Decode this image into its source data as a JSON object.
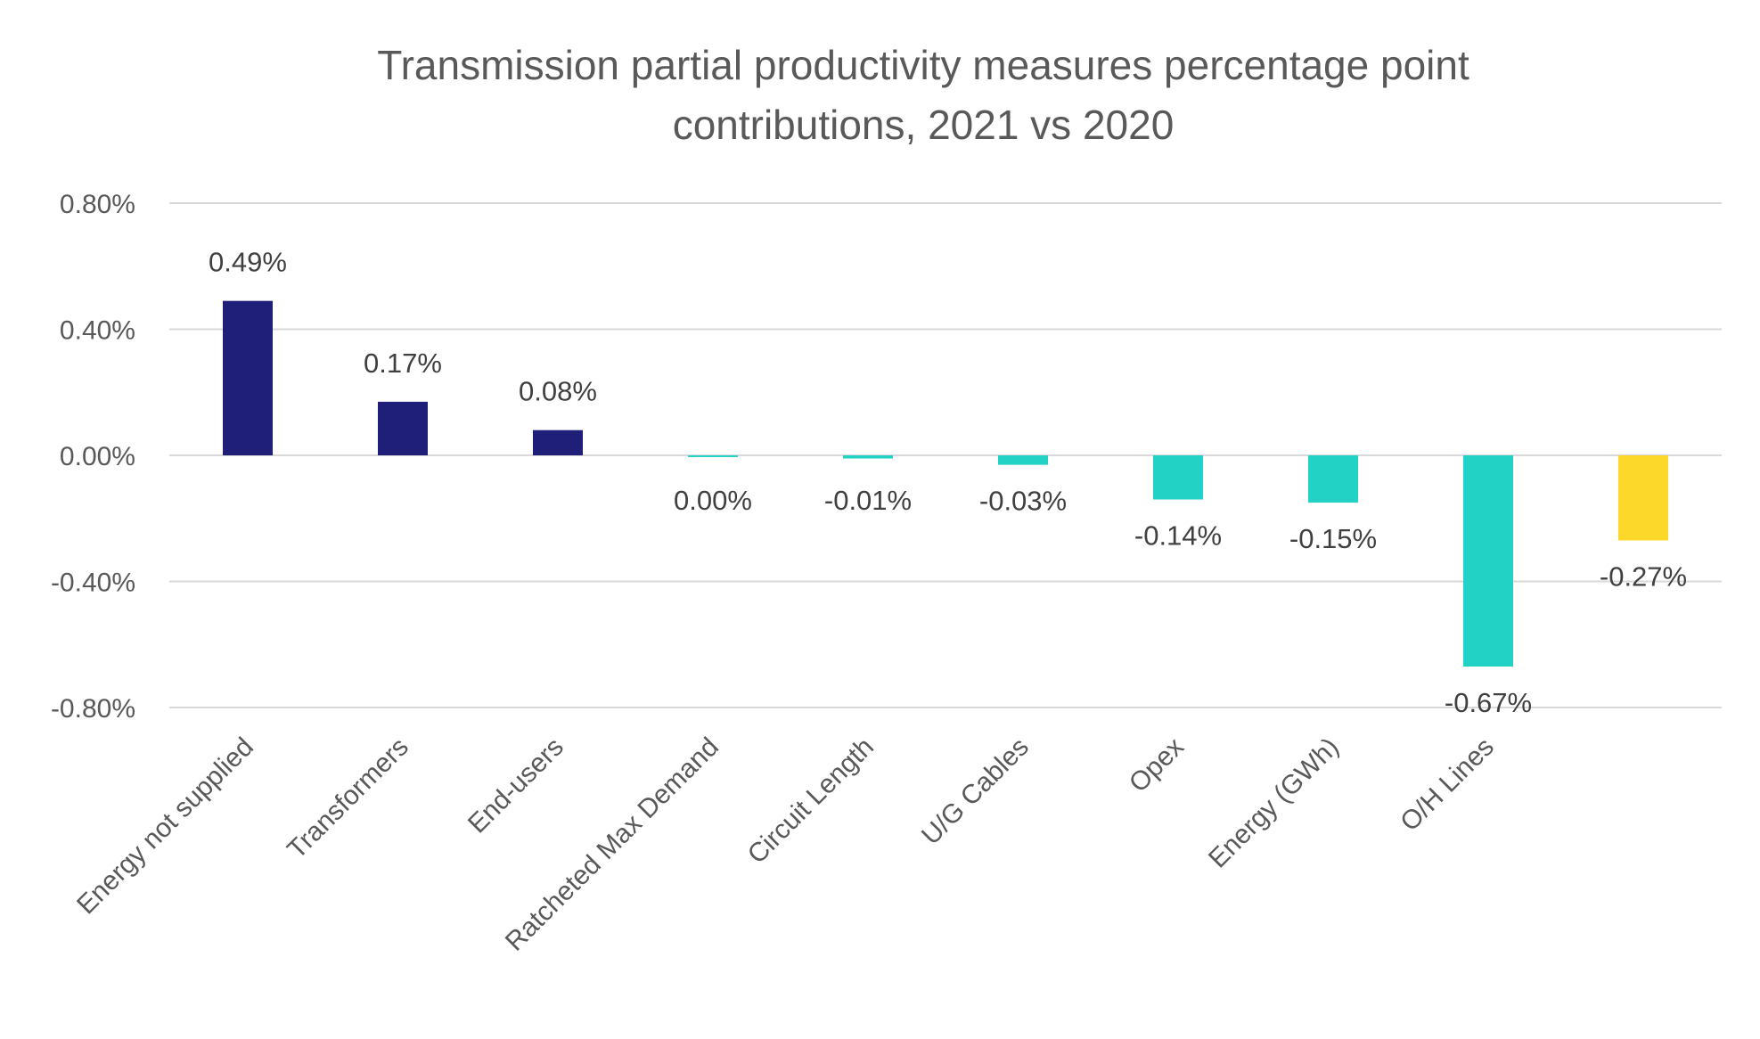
{
  "chart_data": {
    "type": "bar",
    "title_lines": [
      "Transmission partial productivity measures percentage point",
      "contributions, 2021 vs 2020"
    ],
    "categories": [
      "Energy not supplied",
      "Transformers",
      "End-users",
      "Ratcheted Max Demand",
      "Circuit Length",
      "U/G Cables",
      "Opex",
      "Energy (GWh)",
      "O/H Lines",
      ""
    ],
    "values": [
      0.49,
      0.17,
      0.08,
      0.0,
      -0.01,
      -0.03,
      -0.14,
      -0.15,
      -0.67,
      -0.27
    ],
    "value_labels": [
      "0.49%",
      "0.17%",
      "0.08%",
      "0.00%",
      "-0.01%",
      "-0.03%",
      "-0.14%",
      "-0.15%",
      "-0.67%",
      "-0.27%"
    ],
    "bar_colors": [
      "#1f1f7a",
      "#1f1f7a",
      "#1f1f7a",
      "#22d3c5",
      "#22d3c5",
      "#22d3c5",
      "#22d3c5",
      "#22d3c5",
      "#22d3c5",
      "#fcd82a"
    ],
    "y_ticks": [
      0.8,
      0.4,
      0.0,
      -0.4,
      -0.8
    ],
    "y_tick_labels": [
      "0.80%",
      "0.40%",
      "0.00%",
      "-0.40%",
      "-0.80%"
    ],
    "ylim": [
      -0.8,
      0.8
    ],
    "grid": true,
    "legend": false,
    "unit": "%"
  }
}
